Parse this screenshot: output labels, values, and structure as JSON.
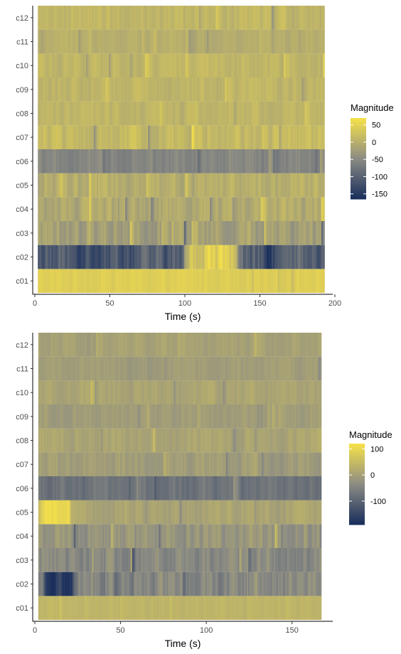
{
  "chart_data": [
    {
      "type": "heatmap",
      "title": "",
      "xlabel": "Time (s)",
      "ylabel": "",
      "xlim": [
        0,
        200
      ],
      "x_range": [
        2,
        193
      ],
      "x_ticks": [
        0,
        50,
        100,
        150,
        200
      ],
      "rows": [
        "c01",
        "c02",
        "c03",
        "c04",
        "c05",
        "c06",
        "c07",
        "c08",
        "c09",
        "c10",
        "c11",
        "c12"
      ],
      "color_scale": {
        "low": "#1a2f5c",
        "mid": "#8c8c84",
        "high": "#f5e04a",
        "min": -165,
        "max": 70
      },
      "legend": {
        "title": "Magnitude",
        "ticks": [
          50,
          0,
          -50,
          -100,
          -150
        ],
        "placement": "right"
      },
      "row_profiles": {
        "c01": {
          "mean": 45,
          "var": 12
        },
        "c02": {
          "mean": -110,
          "var": 55,
          "segments": [
            [
              100,
              135,
              40
            ]
          ]
        },
        "c03": {
          "mean": -20,
          "var": 40
        },
        "c04": {
          "mean": -5,
          "var": 30
        },
        "c05": {
          "mean": 0,
          "var": 28
        },
        "c06": {
          "mean": -55,
          "var": 22
        },
        "c07": {
          "mean": 15,
          "var": 28
        },
        "c08": {
          "mean": 10,
          "var": 18
        },
        "c09": {
          "mean": 10,
          "var": 18
        },
        "c10": {
          "mean": 10,
          "var": 18
        },
        "c11": {
          "mean": 0,
          "var": 15
        },
        "c12": {
          "mean": 10,
          "var": 22
        }
      }
    },
    {
      "type": "heatmap",
      "title": "",
      "xlabel": "Time (s)",
      "ylabel": "",
      "xlim": [
        0,
        175
      ],
      "x_range": [
        2,
        167
      ],
      "x_ticks": [
        0,
        50,
        100,
        150
      ],
      "rows": [
        "c01",
        "c02",
        "c03",
        "c04",
        "c05",
        "c06",
        "c07",
        "c08",
        "c09",
        "c10",
        "c11",
        "c12"
      ],
      "color_scale": {
        "low": "#1a2f5c",
        "mid": "#8c8c84",
        "high": "#f5e04a",
        "min": -190,
        "max": 120
      },
      "legend": {
        "title": "Magnitude",
        "ticks": [
          100,
          0,
          -100
        ],
        "placement": "right"
      },
      "row_profiles": {
        "c01": {
          "mean": 40,
          "var": 12
        },
        "c02": {
          "mean": -40,
          "var": 55,
          "segments": [
            [
              5,
              22,
              -170
            ]
          ]
        },
        "c03": {
          "mean": -40,
          "var": 45
        },
        "c04": {
          "mean": -15,
          "var": 45
        },
        "c05": {
          "mean": 10,
          "var": 25,
          "segments": [
            [
              2,
              20,
              110
            ]
          ]
        },
        "c06": {
          "mean": -75,
          "var": 30
        },
        "c07": {
          "mean": -5,
          "var": 28
        },
        "c08": {
          "mean": 10,
          "var": 25
        },
        "c09": {
          "mean": -5,
          "var": 20
        },
        "c10": {
          "mean": 10,
          "var": 22
        },
        "c11": {
          "mean": -5,
          "var": 18
        },
        "c12": {
          "mean": 5,
          "var": 20
        }
      }
    }
  ]
}
